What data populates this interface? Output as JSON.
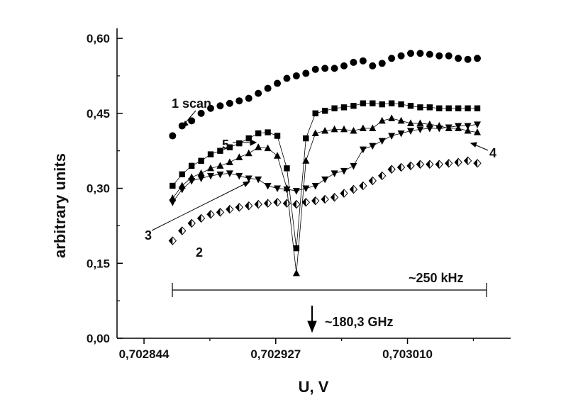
{
  "chart_data": {
    "type": "scatter",
    "xlabel": "U, V",
    "ylabel": "arbitrary units",
    "xlim": [
      0.702827,
      0.703075
    ],
    "ylim": [
      0.0,
      0.62
    ],
    "x_ticks": [
      {
        "value": 0.702844,
        "label": "0,702844"
      },
      {
        "value": 0.702927,
        "label": "0,702927"
      },
      {
        "value": 0.70301,
        "label": "0,703010"
      }
    ],
    "y_ticks": [
      {
        "value": 0.0,
        "label": "0,00"
      },
      {
        "value": 0.15,
        "label": "0,15"
      },
      {
        "value": 0.3,
        "label": "0,30"
      },
      {
        "value": 0.45,
        "label": "0,45"
      },
      {
        "value": 0.6,
        "label": "0,60"
      }
    ],
    "grid": false,
    "series": [
      {
        "name": "1 scan",
        "marker": "circle",
        "connected": false,
        "x": [
          0.702862,
          0.702868,
          0.702874,
          0.70288,
          0.702886,
          0.702892,
          0.702898,
          0.702904,
          0.70291,
          0.702916,
          0.702922,
          0.702928,
          0.702934,
          0.70294,
          0.702946,
          0.702952,
          0.702958,
          0.702964,
          0.70297,
          0.702976,
          0.702982,
          0.702988,
          0.702994,
          0.703,
          0.703006,
          0.703012,
          0.703018,
          0.703024,
          0.70303,
          0.703036,
          0.703042,
          0.703048,
          0.703054
        ],
        "y": [
          0.405,
          0.425,
          0.435,
          0.45,
          0.46,
          0.465,
          0.47,
          0.475,
          0.48,
          0.49,
          0.5,
          0.51,
          0.52,
          0.525,
          0.53,
          0.538,
          0.54,
          0.54,
          0.545,
          0.552,
          0.555,
          0.545,
          0.55,
          0.56,
          0.565,
          0.57,
          0.57,
          0.568,
          0.565,
          0.565,
          0.56,
          0.558,
          0.56
        ]
      },
      {
        "name": "2",
        "marker": "diamond-half",
        "connected": false,
        "x": [
          0.702862,
          0.702868,
          0.702874,
          0.70288,
          0.702886,
          0.702892,
          0.702898,
          0.702904,
          0.70291,
          0.702916,
          0.702922,
          0.702928,
          0.702934,
          0.70294,
          0.702946,
          0.702952,
          0.702958,
          0.702964,
          0.70297,
          0.702976,
          0.702982,
          0.702988,
          0.702994,
          0.703,
          0.703006,
          0.703012,
          0.703018,
          0.703024,
          0.70303,
          0.703036,
          0.703042,
          0.703048,
          0.703054
        ],
        "y": [
          0.195,
          0.215,
          0.23,
          0.24,
          0.248,
          0.252,
          0.258,
          0.262,
          0.265,
          0.268,
          0.27,
          0.272,
          0.27,
          0.268,
          0.272,
          0.275,
          0.278,
          0.282,
          0.29,
          0.298,
          0.305,
          0.315,
          0.325,
          0.338,
          0.342,
          0.345,
          0.348,
          0.348,
          0.348,
          0.35,
          0.352,
          0.355,
          0.35
        ]
      },
      {
        "name": "3",
        "marker": "triangle-down",
        "connected": true,
        "x": [
          0.702862,
          0.702868,
          0.702874,
          0.70288,
          0.702886,
          0.702892,
          0.702898,
          0.702904,
          0.70291,
          0.702916,
          0.702922,
          0.702928,
          0.702934,
          0.70294,
          0.702946,
          0.702952,
          0.702958,
          0.702964,
          0.70297,
          0.702976,
          0.702982,
          0.702988,
          0.702994,
          0.703,
          0.703006,
          0.703012,
          0.703018,
          0.703024,
          0.70303,
          0.703036,
          0.703042,
          0.703048,
          0.703054
        ],
        "y": [
          0.272,
          0.298,
          0.315,
          0.32,
          0.325,
          0.328,
          0.33,
          0.325,
          0.32,
          0.318,
          0.305,
          0.3,
          0.298,
          0.295,
          0.3,
          0.305,
          0.318,
          0.33,
          0.335,
          0.345,
          0.378,
          0.385,
          0.395,
          0.405,
          0.41,
          0.415,
          0.418,
          0.42,
          0.42,
          0.422,
          0.425,
          0.425,
          0.428
        ]
      },
      {
        "name": "4",
        "marker": "triangle-up",
        "connected": true,
        "x": [
          0.702862,
          0.702868,
          0.702874,
          0.70288,
          0.702886,
          0.702892,
          0.702898,
          0.702904,
          0.70291,
          0.702916,
          0.702922,
          0.702928,
          0.702934,
          0.70294,
          0.702946,
          0.702952,
          0.702958,
          0.702964,
          0.70297,
          0.702976,
          0.702982,
          0.702988,
          0.702994,
          0.703,
          0.703006,
          0.703012,
          0.703018,
          0.703024,
          0.70303,
          0.703036,
          0.703042,
          0.703048,
          0.703054
        ],
        "y": [
          0.28,
          0.305,
          0.322,
          0.33,
          0.34,
          0.345,
          0.352,
          0.362,
          0.37,
          0.382,
          0.38,
          0.365,
          0.3,
          0.13,
          0.355,
          0.41,
          0.415,
          0.418,
          0.418,
          0.415,
          0.42,
          0.42,
          0.435,
          0.44,
          0.435,
          0.43,
          0.43,
          0.428,
          0.425,
          0.42,
          0.42,
          0.415,
          0.412
        ]
      },
      {
        "name": "5",
        "marker": "square",
        "connected": true,
        "x": [
          0.702862,
          0.702868,
          0.702874,
          0.70288,
          0.702886,
          0.702892,
          0.702898,
          0.702904,
          0.70291,
          0.702916,
          0.702922,
          0.702928,
          0.702934,
          0.70294,
          0.702946,
          0.702952,
          0.702958,
          0.702964,
          0.70297,
          0.702976,
          0.702982,
          0.702988,
          0.702994,
          0.703,
          0.703006,
          0.703012,
          0.703018,
          0.703024,
          0.70303,
          0.703036,
          0.703042,
          0.703048,
          0.703054
        ],
        "y": [
          0.305,
          0.328,
          0.345,
          0.355,
          0.368,
          0.375,
          0.382,
          0.39,
          0.4,
          0.41,
          0.412,
          0.405,
          0.34,
          0.18,
          0.4,
          0.45,
          0.455,
          0.46,
          0.462,
          0.465,
          0.47,
          0.47,
          0.468,
          0.47,
          0.468,
          0.465,
          0.462,
          0.462,
          0.46,
          0.46,
          0.46,
          0.46,
          0.46
        ]
      }
    ],
    "annotations": {
      "label_1": "1 scan",
      "label_2": "2",
      "label_3": "3",
      "label_4": "4",
      "label_5": "5",
      "span_label": "~250 kHz",
      "freq_label": "~180,3 GHz"
    }
  }
}
